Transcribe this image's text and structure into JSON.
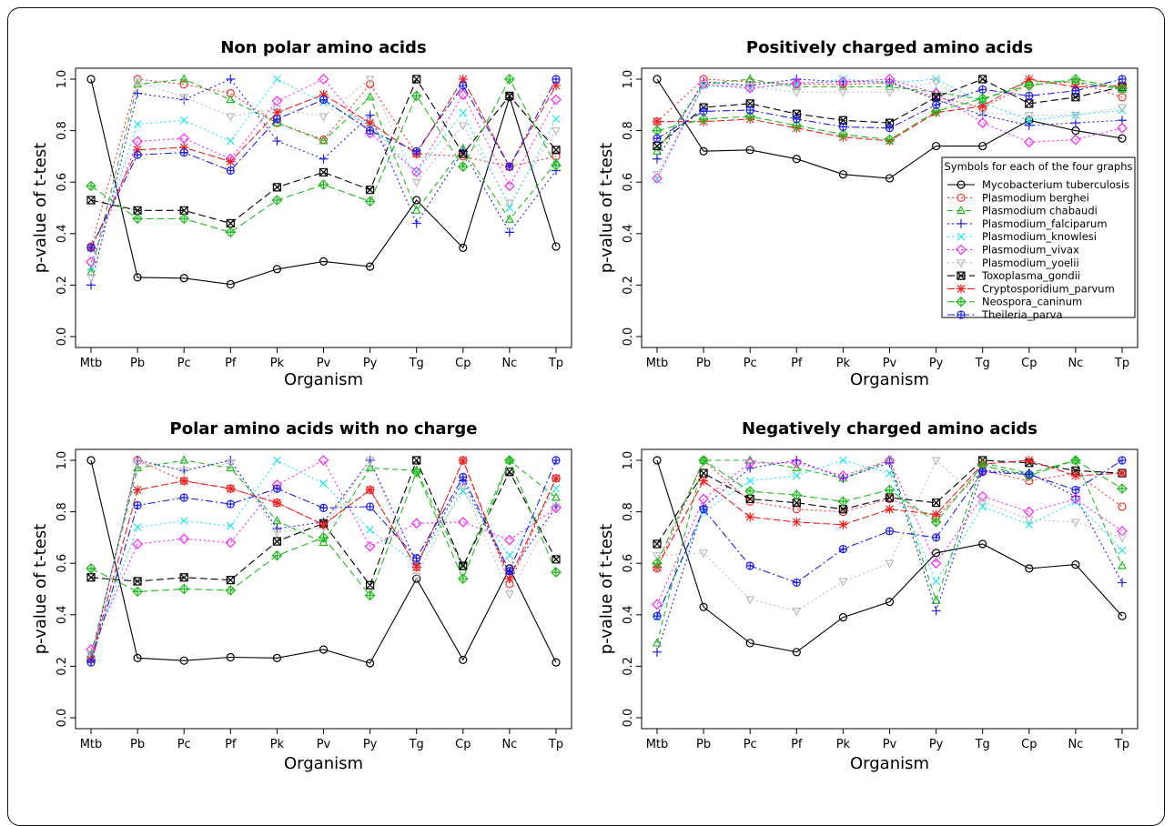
{
  "colors": {
    "Mycobacterium tuberculosis": "#000000",
    "Plasmodium berghei": "#ff3030",
    "Plasmodium chabaudi": "#22bb22",
    "Plasmodium_falciparum": "#2020ee",
    "Plasmodium_knowlesi": "#22e6f0",
    "Plasmodium_vivax": "#ff20ff",
    "Plasmodium_yoelii": "#bdbdbd",
    "Toxoplasma_gondii": "#000000",
    "Cryptosporidium_parvum": "#ee2020",
    "Neospora_caninum": "#22bb22",
    "Theileria_parva": "#2020ee"
  },
  "chart_data": [
    {
      "type": "line",
      "title": "Non polar amino acids",
      "xlabel": "Organism",
      "ylabel": "p-value of t-test",
      "categories": [
        "Mtb",
        "Pb",
        "Pc",
        "Pf",
        "Pk",
        "Pv",
        "Py",
        "Tg",
        "Cp",
        "Nc",
        "Tp"
      ],
      "ylim": [
        0,
        1
      ],
      "yticks": [
        "0.0",
        "0.2",
        "0.4",
        "0.6",
        "0.8",
        "1.0"
      ],
      "series": [
        {
          "name": "Mycobacterium tuberculosis",
          "values": [
            1.0,
            0.23,
            0.227,
            0.203,
            0.262,
            0.292,
            0.272,
            0.53,
            0.345,
            0.93,
            0.35
          ]
        },
        {
          "name": "Plasmodium berghei",
          "values": [
            0.35,
            1.0,
            0.98,
            0.945,
            0.83,
            0.765,
            0.98,
            0.71,
            0.7,
            0.66,
            0.7
          ]
        },
        {
          "name": "Plasmodium chabaudi",
          "values": [
            0.25,
            0.98,
            1.0,
            0.92,
            0.83,
            0.76,
            0.93,
            0.49,
            0.73,
            0.455,
            0.675
          ]
        },
        {
          "name": "Plasmodium_falciparum",
          "values": [
            0.2,
            0.945,
            0.92,
            1.0,
            0.76,
            0.69,
            0.86,
            0.44,
            0.72,
            0.405,
            0.645
          ]
        },
        {
          "name": "Plasmodium_knowlesi",
          "values": [
            0.27,
            0.825,
            0.84,
            0.76,
            1.0,
            0.91,
            0.82,
            0.64,
            0.87,
            0.5,
            0.845
          ]
        },
        {
          "name": "Plasmodium_vivax",
          "values": [
            0.29,
            0.758,
            0.77,
            0.69,
            0.915,
            1.0,
            0.79,
            0.64,
            0.94,
            0.585,
            0.92
          ]
        },
        {
          "name": "Plasmodium_yoelii",
          "values": [
            0.23,
            0.99,
            0.93,
            0.855,
            0.885,
            0.855,
            1.0,
            0.6,
            0.82,
            0.52,
            0.8
          ]
        },
        {
          "name": "Toxoplasma_gondii",
          "values": [
            0.53,
            0.49,
            0.49,
            0.44,
            0.58,
            0.638,
            0.57,
            1.0,
            0.71,
            0.935,
            0.725
          ]
        },
        {
          "name": "Cryptosporidium_parvum",
          "values": [
            0.345,
            0.725,
            0.735,
            0.68,
            0.87,
            0.94,
            0.83,
            0.71,
            1.0,
            0.66,
            0.975
          ]
        },
        {
          "name": "Neospora_caninum",
          "values": [
            0.585,
            0.458,
            0.458,
            0.405,
            0.53,
            0.59,
            0.525,
            0.935,
            0.66,
            1.0,
            0.665
          ]
        },
        {
          "name": "Theileria_parva",
          "values": [
            0.345,
            0.706,
            0.715,
            0.645,
            0.845,
            0.92,
            0.8,
            0.72,
            0.975,
            0.66,
            1.0
          ]
        }
      ]
    },
    {
      "type": "line",
      "title": "Positively charged amino acids",
      "xlabel": "Organism",
      "ylabel": "p-value of t-test",
      "categories": [
        "Mtb",
        "Pb",
        "Pc",
        "Pf",
        "Pk",
        "Pv",
        "Py",
        "Tg",
        "Cp",
        "Nc",
        "Tp"
      ],
      "ylim": [
        0,
        1
      ],
      "yticks": [
        "0.0",
        "0.2",
        "0.4",
        "0.6",
        "0.8",
        "1.0"
      ],
      "series": [
        {
          "name": "Mycobacterium tuberculosis",
          "values": [
            1.0,
            0.72,
            0.725,
            0.69,
            0.63,
            0.615,
            0.74,
            0.74,
            0.84,
            0.8,
            0.77
          ]
        },
        {
          "name": "Plasmodium berghei",
          "values": [
            0.835,
            1.0,
            0.99,
            0.98,
            0.98,
            0.985,
            0.93,
            0.89,
            0.98,
            0.99,
            0.93
          ]
        },
        {
          "name": "Plasmodium chabaudi",
          "values": [
            0.72,
            0.98,
            1.0,
            0.97,
            0.97,
            0.97,
            0.95,
            0.92,
            0.99,
            0.99,
            0.96
          ]
        },
        {
          "name": "Plasmodium_falciparum",
          "values": [
            0.69,
            0.99,
            0.975,
            1.0,
            0.99,
            0.99,
            0.92,
            0.86,
            0.82,
            0.83,
            0.84
          ]
        },
        {
          "name": "Plasmodium_knowlesi",
          "values": [
            0.61,
            0.975,
            0.965,
            0.98,
            1.0,
            0.985,
            1.0,
            0.91,
            0.84,
            0.86,
            0.88
          ]
        },
        {
          "name": "Plasmodium_vivax",
          "values": [
            0.615,
            0.98,
            0.965,
            0.985,
            0.99,
            1.0,
            0.945,
            0.83,
            0.755,
            0.765,
            0.81
          ]
        },
        {
          "name": "Plasmodium_yoelii",
          "values": [
            0.63,
            0.98,
            0.97,
            0.95,
            0.95,
            0.95,
            0.99,
            0.87,
            0.86,
            0.86,
            0.89
          ]
        },
        {
          "name": "Toxoplasma_gondii",
          "values": [
            0.74,
            0.89,
            0.905,
            0.865,
            0.84,
            0.83,
            0.93,
            1.0,
            0.905,
            0.93,
            0.97
          ]
        },
        {
          "name": "Cryptosporidium_parvum",
          "values": [
            0.835,
            0.835,
            0.845,
            0.81,
            0.775,
            0.76,
            0.87,
            0.895,
            1.0,
            0.97,
            0.975
          ]
        },
        {
          "name": "Neospora_caninum",
          "values": [
            0.8,
            0.845,
            0.855,
            0.82,
            0.785,
            0.765,
            0.875,
            0.925,
            0.975,
            1.0,
            0.965
          ]
        },
        {
          "name": "Theileria_parva",
          "values": [
            0.77,
            0.875,
            0.88,
            0.845,
            0.815,
            0.81,
            0.9,
            0.96,
            0.935,
            0.955,
            1.0
          ]
        }
      ]
    },
    {
      "type": "line",
      "title": "Polar amino acids with no charge",
      "xlabel": "Organism",
      "ylabel": "p-value of t-test",
      "categories": [
        "Mtb",
        "Pb",
        "Pc",
        "Pf",
        "Pk",
        "Pv",
        "Py",
        "Tg",
        "Cp",
        "Nc",
        "Tp"
      ],
      "ylim": [
        0,
        1
      ],
      "yticks": [
        "0.0",
        "0.2",
        "0.4",
        "0.6",
        "0.8",
        "1.0"
      ],
      "series": [
        {
          "name": "Mycobacterium tuberculosis",
          "values": [
            1.0,
            0.232,
            0.222,
            0.235,
            0.232,
            0.265,
            0.212,
            0.54,
            0.225,
            0.58,
            0.215
          ]
        },
        {
          "name": "Plasmodium berghei",
          "values": [
            0.23,
            1.0,
            0.92,
            0.89,
            0.835,
            0.75,
            0.885,
            0.585,
            1.0,
            0.52,
            0.93
          ]
        },
        {
          "name": "Plasmodium chabaudi",
          "values": [
            0.245,
            0.97,
            1.0,
            0.97,
            0.765,
            0.68,
            0.97,
            0.96,
            0.585,
            1.0,
            0.855
          ]
        },
        {
          "name": "Plasmodium_falciparum",
          "values": [
            0.22,
            1.0,
            0.96,
            1.0,
            0.735,
            0.76,
            1.0,
            0.6,
            0.92,
            0.56,
            0.82
          ]
        },
        {
          "name": "Plasmodium_knowlesi",
          "values": [
            0.24,
            0.74,
            0.765,
            0.745,
            1.0,
            0.91,
            0.73,
            0.6,
            0.88,
            0.63,
            0.89
          ]
        },
        {
          "name": "Plasmodium_vivax",
          "values": [
            0.265,
            0.675,
            0.695,
            0.68,
            0.905,
            1.0,
            0.665,
            0.755,
            0.76,
            0.69,
            0.815
          ]
        },
        {
          "name": "Plasmodium_yoelii",
          "values": [
            0.23,
            0.99,
            0.96,
            0.99,
            0.72,
            0.74,
            1.0,
            0.55,
            0.9,
            0.48,
            0.82
          ]
        },
        {
          "name": "Toxoplasma_gondii",
          "values": [
            0.545,
            0.53,
            0.545,
            0.535,
            0.685,
            0.755,
            0.515,
            1.0,
            0.59,
            0.955,
            0.615
          ]
        },
        {
          "name": "Cryptosporidium_parvum",
          "values": [
            0.225,
            0.885,
            0.92,
            0.89,
            0.835,
            0.75,
            0.885,
            0.585,
            1.0,
            0.54,
            0.93
          ]
        },
        {
          "name": "Neospora_caninum",
          "values": [
            0.58,
            0.49,
            0.5,
            0.495,
            0.63,
            0.7,
            0.475,
            0.955,
            0.54,
            1.0,
            0.565
          ]
        },
        {
          "name": "Theileria_parva",
          "values": [
            0.215,
            0.825,
            0.855,
            0.83,
            0.89,
            0.815,
            0.82,
            0.62,
            0.935,
            0.57,
            1.0
          ]
        }
      ]
    },
    {
      "type": "line",
      "title": "Negatively charged amino acids",
      "xlabel": "Organism",
      "ylabel": "p-value of t-test",
      "categories": [
        "Mtb",
        "Pb",
        "Pc",
        "Pf",
        "Pk",
        "Pv",
        "Py",
        "Tg",
        "Cp",
        "Nc",
        "Tp"
      ],
      "ylim": [
        0,
        1
      ],
      "yticks": [
        "0.0",
        "0.2",
        "0.4",
        "0.6",
        "0.8",
        "1.0"
      ],
      "series": [
        {
          "name": "Mycobacterium tuberculosis",
          "values": [
            1.0,
            0.43,
            0.29,
            0.255,
            0.39,
            0.45,
            0.64,
            0.675,
            0.58,
            0.595,
            0.395
          ]
        },
        {
          "name": "Plasmodium berghei",
          "values": [
            0.58,
            1.0,
            0.84,
            0.81,
            0.8,
            0.85,
            0.78,
            0.96,
            0.92,
            0.95,
            0.82
          ]
        },
        {
          "name": "Plasmodium chabaudi",
          "values": [
            0.29,
            1.0,
            1.0,
            0.97,
            0.93,
            1.0,
            0.455,
            0.99,
            0.95,
            1.0,
            0.59
          ]
        },
        {
          "name": "Plasmodium_falciparum",
          "values": [
            0.255,
            0.82,
            0.97,
            1.0,
            0.93,
            0.99,
            0.415,
            0.96,
            0.95,
            0.86,
            0.525
          ]
        },
        {
          "name": "Plasmodium_knowlesi",
          "values": [
            0.39,
            0.8,
            0.92,
            0.94,
            1.0,
            0.95,
            0.53,
            0.82,
            0.75,
            0.84,
            0.65
          ]
        },
        {
          "name": "Plasmodium_vivax",
          "values": [
            0.44,
            0.85,
            0.99,
            0.99,
            0.94,
            1.0,
            0.6,
            0.86,
            0.8,
            0.85,
            0.725
          ]
        },
        {
          "name": "Plasmodium_yoelii",
          "values": [
            0.63,
            0.64,
            0.46,
            0.415,
            0.53,
            0.6,
            1.0,
            0.84,
            0.77,
            0.76,
            0.7
          ]
        },
        {
          "name": "Toxoplasma_gondii",
          "values": [
            0.675,
            0.95,
            0.85,
            0.835,
            0.81,
            0.855,
            0.835,
            1.0,
            0.99,
            0.96,
            0.95
          ]
        },
        {
          "name": "Cryptosporidium_parvum",
          "values": [
            0.585,
            0.92,
            0.78,
            0.76,
            0.75,
            0.81,
            0.79,
            0.985,
            1.0,
            0.94,
            0.95
          ]
        },
        {
          "name": "Neospora_caninum",
          "values": [
            0.6,
            1.0,
            0.88,
            0.865,
            0.84,
            0.885,
            0.76,
            0.98,
            0.94,
            1.0,
            0.89
          ]
        },
        {
          "name": "Theileria_parva",
          "values": [
            0.395,
            0.81,
            0.59,
            0.525,
            0.655,
            0.725,
            0.7,
            0.955,
            0.945,
            0.885,
            1.0
          ]
        }
      ]
    }
  ],
  "legend": {
    "title": "Symbols for each of the four graphs",
    "placement": "inside Positively charged amino acids panel, lower right",
    "entries": [
      "Mycobacterium tuberculosis",
      "Plasmodium berghei",
      "Plasmodium chabaudi",
      "Plasmodium_falciparum",
      "Plasmodium_knowlesi",
      "Plasmodium_vivax",
      "Plasmodium_yoelii",
      "Toxoplasma_gondii",
      "Cryptosporidium_parvum",
      "Neospora_caninum",
      "Theileria_parva"
    ]
  }
}
